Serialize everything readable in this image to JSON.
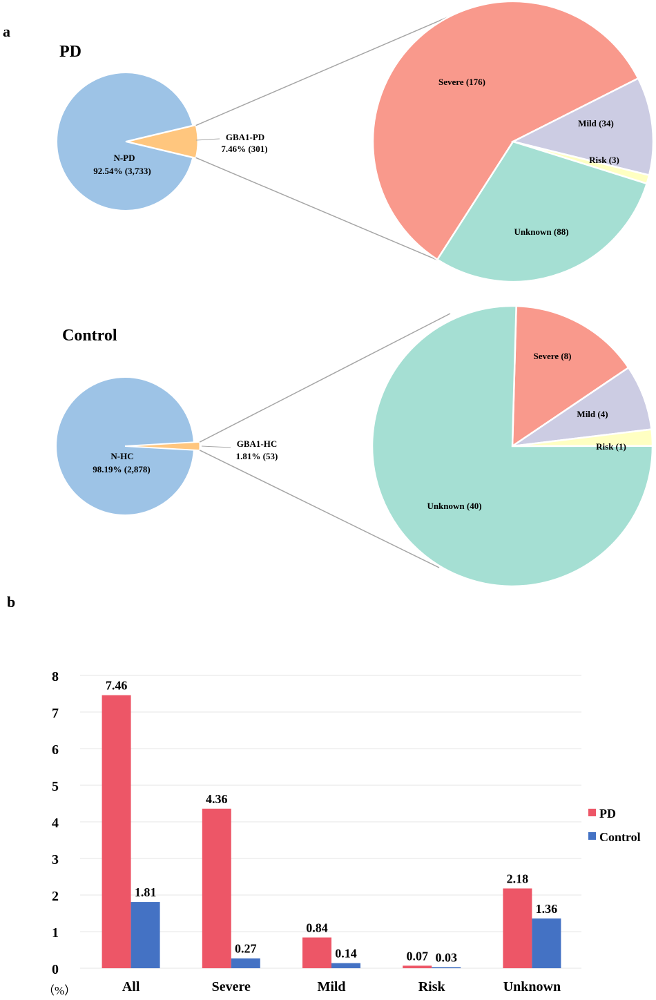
{
  "panels": {
    "a": "a",
    "b": "b"
  },
  "colors": {
    "n_slice": "#9DC3E6",
    "gba_slice": "#FFC67E",
    "severe": "#F9998C",
    "mild": "#CCCCE3",
    "risk": "#FFFFC2",
    "unknown": "#A5DFD3",
    "pd_bar": "#ED5667",
    "control_bar": "#4472C4",
    "connector": "#A6A6A6",
    "grid": "#E6E6E6"
  },
  "chart_data": [
    {
      "type": "pie",
      "id": "pd",
      "title": "PD",
      "main": {
        "slices": [
          {
            "name": "N-PD",
            "value": 3733,
            "label1": "N-PD",
            "label2": "92.54%  (3,733)"
          },
          {
            "name": "GBA1-PD",
            "value": 301,
            "label1": "GBA1-PD",
            "label2": "7.46% (301)"
          }
        ]
      },
      "detail": {
        "slices": [
          {
            "name": "Severe",
            "value": 176,
            "label": "Severe (176)"
          },
          {
            "name": "Mild",
            "value": 34,
            "label": "Mild (34)"
          },
          {
            "name": "Risk",
            "value": 3,
            "label": "Risk (3)"
          },
          {
            "name": "Unknown",
            "value": 88,
            "label": "Unknown (88)"
          }
        ]
      }
    },
    {
      "type": "pie",
      "id": "control",
      "title": "Control",
      "main": {
        "slices": [
          {
            "name": "N-HC",
            "value": 2878,
            "label1": "N-HC",
            "label2": "98.19%  (2,878)"
          },
          {
            "name": "GBA1-HC",
            "value": 53,
            "label1": "GBA1-HC",
            "label2": "1.81%  (53)"
          }
        ]
      },
      "detail": {
        "slices": [
          {
            "name": "Severe",
            "value": 8,
            "label": "Severe (8)"
          },
          {
            "name": "Mild",
            "value": 4,
            "label": "Mild (4)"
          },
          {
            "name": "Risk",
            "value": 1,
            "label": "Risk (1)"
          },
          {
            "name": "Unknown",
            "value": 40,
            "label": "Unknown (40)"
          }
        ]
      }
    },
    {
      "type": "bar",
      "id": "frequency",
      "categories": [
        "All",
        "Severe",
        "Mild",
        "Risk",
        "Unknown"
      ],
      "series": [
        {
          "name": "PD",
          "values": [
            7.46,
            4.36,
            0.84,
            0.07,
            2.18
          ],
          "labels": [
            "7.46",
            "4.36",
            "0.84",
            "0.07",
            "2.18"
          ]
        },
        {
          "name": "Control",
          "values": [
            1.81,
            0.27,
            0.14,
            0.03,
            1.36
          ],
          "labels": [
            "1.81",
            "0.27",
            "0.14",
            "0.03",
            "1.36"
          ]
        }
      ],
      "yticks": [
        "0",
        "1",
        "2",
        "3",
        "4",
        "5",
        "6",
        "7",
        "8"
      ],
      "ylim": [
        0,
        8
      ],
      "ylabel": "（%）",
      "grid": true,
      "legend": "right"
    }
  ]
}
